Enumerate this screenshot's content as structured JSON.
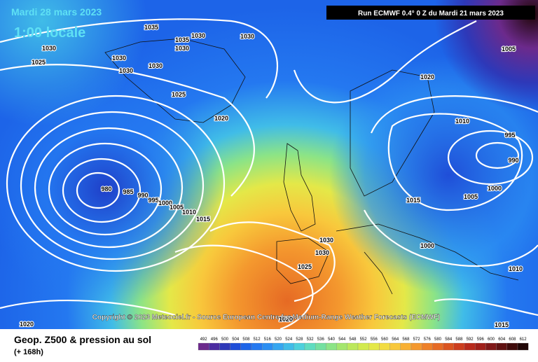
{
  "header": {
    "date": "Mardi 28 mars 2023",
    "local_time": "1:00 locale",
    "run": "Run ECMWF 0.4° 0 Z du Mardi 21 mars 2023"
  },
  "copyright": "Copyright © 2023 Meteociel.fr - Source European Centre for Medium-Range Weather Forecasts (ECMWF)",
  "isobar_labels": [
    1035,
    1035,
    1030,
    1030,
    1030,
    1030,
    1030,
    1030,
    1030,
    1025,
    1025,
    1020,
    1020,
    1005,
    1010,
    995,
    990,
    980,
    985,
    990,
    995,
    1000,
    1005,
    1010,
    1015,
    1015,
    1005,
    1000,
    1000,
    1030,
    1030,
    1025,
    1010,
    1020,
    1020,
    1015
  ],
  "legend": {
    "title": "Geop. Z500 & pression au sol",
    "subtitle": "(+ 168h)",
    "scale": [
      492,
      496,
      500,
      504,
      508,
      512,
      516,
      520,
      524,
      528,
      532,
      536,
      540,
      544,
      548,
      552,
      556,
      560,
      564,
      568,
      572,
      576,
      580,
      584,
      588,
      592,
      596,
      600,
      604,
      608,
      612
    ],
    "colors": [
      "#6c2a8c",
      "#4b2ca0",
      "#2e38b8",
      "#1f4ed8",
      "#1d64e8",
      "#2478f0",
      "#2b8ef2",
      "#35a6f0",
      "#40bce8",
      "#4dd0dc",
      "#5fdcc0",
      "#74e0a0",
      "#8ce486",
      "#a4e66e",
      "#bce85c",
      "#d2ea4e",
      "#e4e848",
      "#f2dc42",
      "#f8c83c",
      "#f8b034",
      "#f4982e",
      "#ee8028",
      "#e66a24",
      "#da5420",
      "#cc3e1e",
      "#b82a1c",
      "#a0201a",
      "#801818",
      "#601212",
      "#400c0c",
      "#200606"
    ]
  }
}
